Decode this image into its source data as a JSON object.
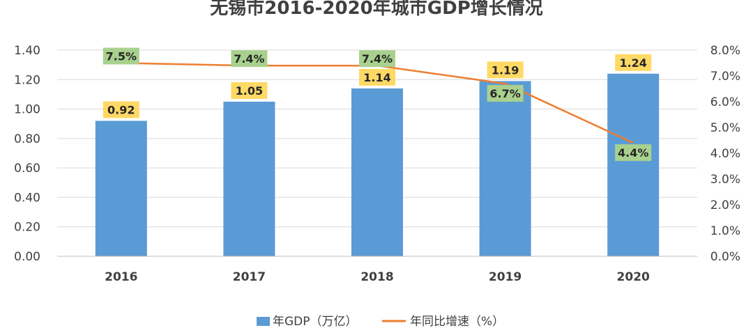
{
  "chart_data": {
    "type": "bar",
    "title": "无锡市2016-2020年城市GDP增长情况",
    "categories": [
      "2016",
      "2017",
      "2018",
      "2019",
      "2020"
    ],
    "series": [
      {
        "name": "年GDP（万亿）",
        "type": "bar",
        "axis": "left",
        "values": [
          0.92,
          1.05,
          1.14,
          1.19,
          1.24
        ],
        "labels": [
          "0.92",
          "1.05",
          "1.14",
          "1.19",
          "1.24"
        ],
        "color": "#5b9bd5"
      },
      {
        "name": "年同比增速（%）",
        "type": "line",
        "axis": "right",
        "values": [
          7.5,
          7.4,
          7.4,
          6.7,
          4.4
        ],
        "labels": [
          "7.5%",
          "7.4%",
          "7.4%",
          "6.7%",
          "4.4%"
        ],
        "color": "#ed7d31"
      }
    ],
    "y_left": {
      "range": [
        0,
        1.4
      ],
      "ticks": [
        "0.00",
        "0.20",
        "0.40",
        "0.60",
        "0.80",
        "1.00",
        "1.20",
        "1.40"
      ]
    },
    "y_right": {
      "range": [
        0,
        8
      ],
      "ticks": [
        "0.0%",
        "1.0%",
        "2.0%",
        "3.0%",
        "4.0%",
        "5.0%",
        "6.0%",
        "7.0%",
        "8.0%"
      ]
    },
    "grid": true,
    "legend": "bottom",
    "colors": {
      "bar_label_bg": "#ffd966",
      "line_label_bg": "#a9d18e",
      "grid": "#d9d9d9",
      "text": "#404040"
    }
  }
}
